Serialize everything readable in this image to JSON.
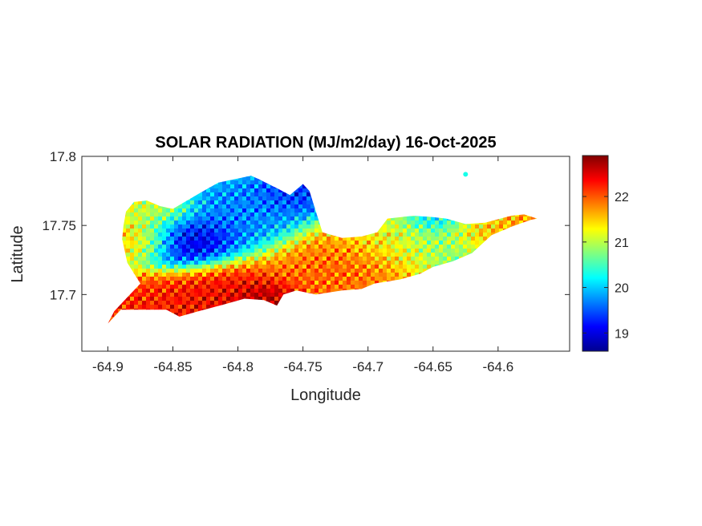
{
  "chart_data": {
    "type": "heatmap",
    "title": "SOLAR RADIATION (MJ/m2/day) 16-Oct-2025",
    "xlabel": "Longitude",
    "ylabel": "Latitude",
    "xlim": [
      -64.92,
      -64.545
    ],
    "ylim": [
      17.659,
      17.8
    ],
    "x_ticks": [
      -64.9,
      -64.85,
      -64.8,
      -64.75,
      -64.7,
      -64.65,
      -64.6
    ],
    "x_tick_labels": [
      "-64.9",
      "-64.85",
      "-64.8",
      "-64.75",
      "-64.7",
      "-64.65",
      "-64.6"
    ],
    "y_ticks": [
      17.7,
      17.75,
      17.8
    ],
    "y_tick_labels": [
      "17.7",
      "17.75",
      "17.8"
    ],
    "colorbar": {
      "colormap": "jet",
      "range": [
        18.6,
        22.9
      ],
      "ticks": [
        19,
        20,
        21,
        22
      ],
      "tick_labels": [
        "19",
        "20",
        "21",
        "22"
      ]
    },
    "island_outline": [
      [
        -64.9,
        17.679
      ],
      [
        -64.89,
        17.689
      ],
      [
        -64.87,
        17.689
      ],
      [
        -64.855,
        17.689
      ],
      [
        -64.845,
        17.684
      ],
      [
        -64.83,
        17.688
      ],
      [
        -64.81,
        17.693
      ],
      [
        -64.795,
        17.697
      ],
      [
        -64.78,
        17.696
      ],
      [
        -64.77,
        17.692
      ],
      [
        -64.765,
        17.7
      ],
      [
        -64.755,
        17.703
      ],
      [
        -64.74,
        17.7
      ],
      [
        -64.72,
        17.703
      ],
      [
        -64.705,
        17.704
      ],
      [
        -64.695,
        17.708
      ],
      [
        -64.675,
        17.711
      ],
      [
        -64.66,
        17.715
      ],
      [
        -64.65,
        17.72
      ],
      [
        -64.635,
        17.724
      ],
      [
        -64.62,
        17.73
      ],
      [
        -64.605,
        17.743
      ],
      [
        -64.59,
        17.749
      ],
      [
        -64.575,
        17.754
      ],
      [
        -64.57,
        17.755
      ],
      [
        -64.58,
        17.758
      ],
      [
        -64.59,
        17.757
      ],
      [
        -64.61,
        17.752
      ],
      [
        -64.625,
        17.751
      ],
      [
        -64.64,
        17.755
      ],
      [
        -64.65,
        17.756
      ],
      [
        -64.665,
        17.757
      ],
      [
        -64.685,
        17.755
      ],
      [
        -64.693,
        17.745
      ],
      [
        -64.705,
        17.742
      ],
      [
        -64.72,
        17.741
      ],
      [
        -64.735,
        17.745
      ],
      [
        -64.745,
        17.775
      ],
      [
        -64.75,
        17.78
      ],
      [
        -64.76,
        17.772
      ],
      [
        -64.768,
        17.776
      ],
      [
        -64.785,
        17.784
      ],
      [
        -64.79,
        17.786
      ],
      [
        -64.8,
        17.784
      ],
      [
        -64.815,
        17.781
      ],
      [
        -64.83,
        17.773
      ],
      [
        -64.85,
        17.762
      ],
      [
        -64.86,
        17.764
      ],
      [
        -64.87,
        17.768
      ],
      [
        -64.88,
        17.767
      ],
      [
        -64.886,
        17.76
      ],
      [
        -64.888,
        17.75
      ],
      [
        -64.889,
        17.74
      ],
      [
        -64.885,
        17.723
      ],
      [
        -64.875,
        17.708
      ],
      [
        -64.885,
        17.698
      ],
      [
        -64.895,
        17.688
      ]
    ],
    "islet": [
      -64.625,
      17.787
    ],
    "field_features": [
      {
        "lon": -64.84,
        "lat": 17.74,
        "value": 18.7,
        "spread": 0.05
      },
      {
        "lon": -64.8,
        "lat": 17.76,
        "value": 19.6,
        "spread": 0.07
      },
      {
        "lon": -64.755,
        "lat": 17.775,
        "value": 19.2,
        "spread": 0.045
      },
      {
        "lon": -64.86,
        "lat": 17.76,
        "value": 21.2,
        "spread": 0.04
      },
      {
        "lon": -64.81,
        "lat": 17.69,
        "value": 22.5,
        "spread": 0.08
      },
      {
        "lon": -64.78,
        "lat": 17.695,
        "value": 22.9,
        "spread": 0.035
      },
      {
        "lon": -64.88,
        "lat": 17.69,
        "value": 22.3,
        "spread": 0.05
      },
      {
        "lon": -64.72,
        "lat": 17.72,
        "value": 22.0,
        "spread": 0.07
      },
      {
        "lon": -64.68,
        "lat": 17.74,
        "value": 21.3,
        "spread": 0.06
      },
      {
        "lon": -64.64,
        "lat": 17.745,
        "value": 20.6,
        "spread": 0.07
      },
      {
        "lon": -64.65,
        "lat": 17.755,
        "value": 19.6,
        "spread": 0.03
      },
      {
        "lon": -64.61,
        "lat": 17.745,
        "value": 22.0,
        "spread": 0.04
      },
      {
        "lon": -64.58,
        "lat": 17.753,
        "value": 21.8,
        "spread": 0.03
      },
      {
        "lon": -64.875,
        "lat": 17.74,
        "value": 21.7,
        "spread": 0.04
      }
    ]
  }
}
